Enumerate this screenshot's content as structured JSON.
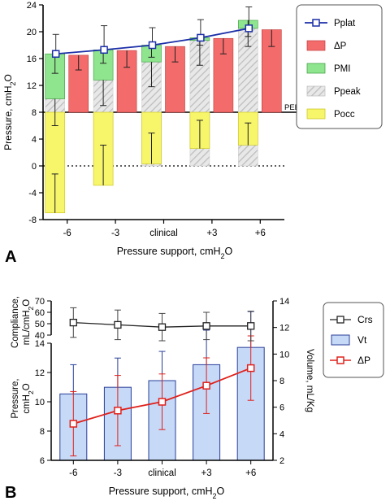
{
  "colors": {
    "pplat": "#1c2fa8",
    "dp_fill": "#f36b6b",
    "pmi_fill": "#8ee58e",
    "ppeak_fill": "#d6d6d6",
    "pocc_fill": "#f7f56a",
    "vt_fill": "#c6d9f7",
    "vt_stroke": "#2a3f9a",
    "dp_line": "#e0201b",
    "crs": "#222222",
    "peep_line": "#000000"
  },
  "chart_data": [
    {
      "panel": "A",
      "type": "bar",
      "xlabel": "Pressure support, cmH",
      "xlabel_sub": "2",
      "xlabel_tail": "O",
      "ylabel": "Pressure, cmH",
      "ylabel_sub": "2",
      "ylabel_tail": "O",
      "ylim": [
        -8,
        24
      ],
      "yticks": [
        "-8",
        "-4",
        "0",
        "4",
        "8",
        "12",
        "16",
        "20",
        "24"
      ],
      "categories": [
        "-6",
        "-3",
        "clinical",
        "+3",
        "+6"
      ],
      "peep": 8,
      "peep_label": "PEEP",
      "legend": {
        "position": "top-right",
        "entries": [
          "Pplat",
          "ΔP",
          "PMI",
          "Ppeak",
          "Pocc"
        ]
      },
      "pplat": {
        "values": [
          16.7,
          17.3,
          18.0,
          19.1,
          20.5
        ],
        "err": [
          2.9,
          3.6,
          2.6,
          2.7,
          3.2
        ]
      },
      "dP": {
        "values": [
          16.5,
          17.2,
          17.8,
          19.0,
          20.3
        ],
        "err": [
          2.2,
          2.5,
          2.3,
          2.3,
          2.5
        ]
      },
      "pmi_top": [
        16.7,
        17.3,
        18.0,
        19.1,
        21.7
      ],
      "pmi_err_low": [
        13.8,
        15.3,
        16.2,
        18.0,
        19.3
      ],
      "ppeak": {
        "values": [
          10.0,
          12.8,
          15.5,
          18.7,
          20.5
        ],
        "err_low": [
          6.0,
          9.0,
          11.8,
          15.0,
          17.8
        ]
      },
      "pocc": {
        "values": [
          -7.0,
          -2.9,
          0.3,
          2.6,
          3.1
        ],
        "err": [
          5.8,
          6.0,
          4.6,
          4.2,
          3.3
        ]
      }
    },
    {
      "panel": "B",
      "type": "bar",
      "xlabel": "Pressure support, cmH",
      "xlabel_sub": "2",
      "xlabel_tail": "O",
      "categories": [
        "-6",
        "-3",
        "clinical",
        "+3",
        "+6"
      ],
      "top": {
        "ylabel_line1": "Compliance,",
        "ylabel_line2": "mL/cmH",
        "ylabel_sub": "2",
        "ylabel_tail": "O",
        "ylim": [
          40,
          70
        ],
        "yticks": [
          "40",
          "50",
          "60",
          "70"
        ],
        "crs": {
          "name": "Crs",
          "values": [
            51,
            49,
            47,
            48,
            48
          ],
          "err": [
            13,
            13,
            12,
            12,
            13
          ]
        }
      },
      "bottom": {
        "ylabel_line1": "Pressure,",
        "ylabel_line2": "cmH",
        "ylabel_sub": "2",
        "ylabel_tail": "O",
        "ylim": [
          6,
          14
        ],
        "yticks": [
          "6",
          "8",
          "10",
          "12",
          "14"
        ],
        "dP": {
          "name": "ΔP",
          "values": [
            8.5,
            9.4,
            10.0,
            11.1,
            12.3
          ],
          "err": [
            2.2,
            2.4,
            1.9,
            1.9,
            2.2
          ]
        }
      },
      "right_axis": {
        "label": "Volume, mL/Kg",
        "ylim": [
          2,
          14
        ],
        "yticks": [
          "2",
          "4",
          "6",
          "8",
          "10",
          "12",
          "14"
        ],
        "vt": {
          "name": "Vt",
          "values": [
            7.0,
            7.5,
            8.0,
            9.2,
            10.5
          ],
          "err": [
            2.2,
            2.2,
            2.2,
            2.6,
            2.7
          ]
        }
      },
      "legend": {
        "position": "right",
        "entries": [
          "Crs",
          "Vt",
          "ΔP"
        ]
      }
    }
  ],
  "panel_labels": [
    "A",
    "B"
  ]
}
